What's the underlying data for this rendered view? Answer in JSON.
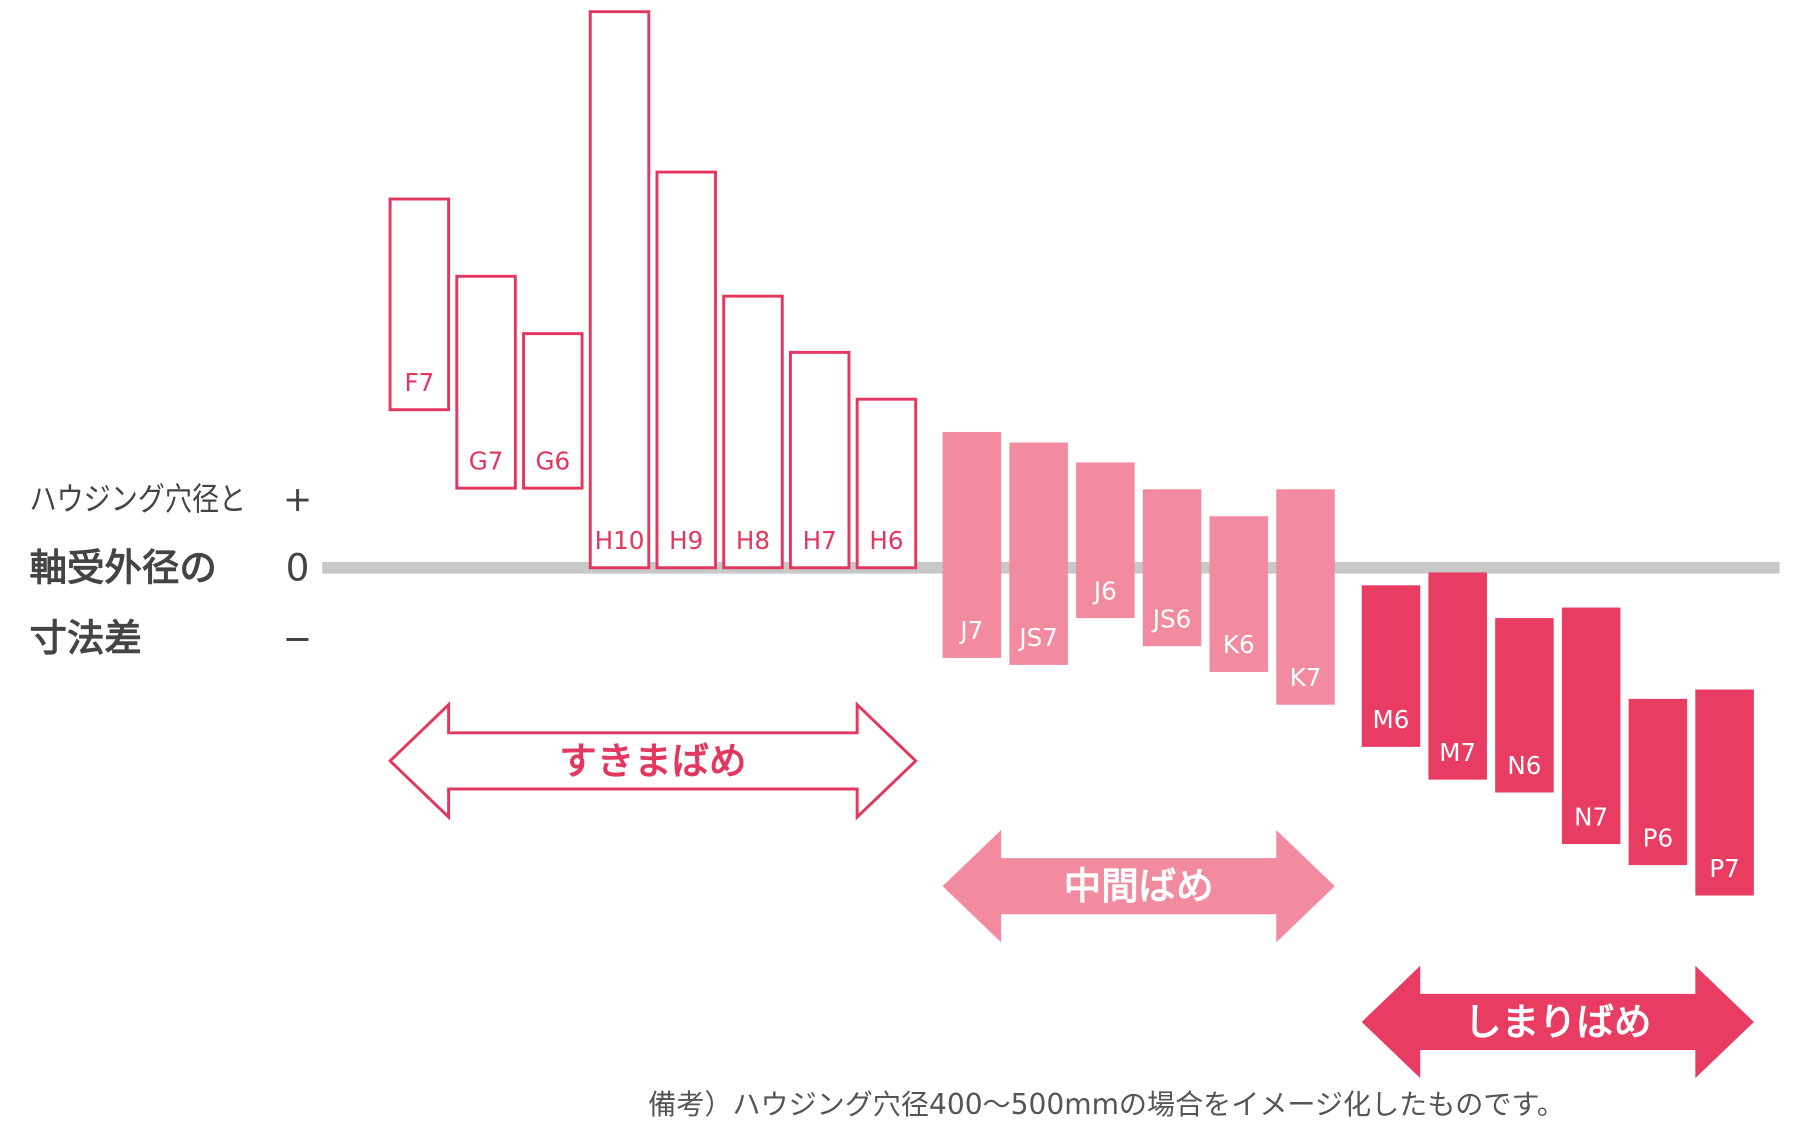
{
  "chart_data": {
    "type": "range-bar",
    "axis_caption": [
      "ハウジング穴径と",
      "軸受外径の",
      "寸法差"
    ],
    "axis_signs": [
      "+",
      "0",
      "−"
    ],
    "ylim": [
      -285,
      480
    ],
    "zero_line_color": "#c8c8c8",
    "groups": [
      {
        "name": "すきまばめ",
        "color": "#e2375f",
        "style": "outline",
        "categories": [
          "F7",
          "G7",
          "G6",
          "H10",
          "H9",
          "H8",
          "H7",
          "H6"
        ],
        "upper": [
          315,
          249,
          200,
          475,
          338,
          232,
          184,
          144
        ],
        "lower": [
          135,
          68,
          68,
          0,
          0,
          0,
          0,
          0
        ]
      },
      {
        "name": "中間ばめ",
        "color": "#f28aa0",
        "style": "filled",
        "categories": [
          "J7",
          "JS7",
          "J6",
          "JS6",
          "K6",
          "K7"
        ],
        "upper": [
          116,
          107,
          90,
          67,
          44,
          67
        ],
        "lower": [
          -77,
          -83,
          -43,
          -67,
          -89,
          -117
        ]
      },
      {
        "name": "しまりばめ",
        "color": "#e83c63",
        "style": "filled",
        "categories": [
          "M6",
          "M7",
          "N6",
          "N7",
          "P6",
          "P7"
        ],
        "upper": [
          -15,
          -4,
          -43,
          -34,
          -112,
          -104
        ],
        "lower": [
          -153,
          -181,
          -192,
          -236,
          -254,
          -280
        ]
      }
    ],
    "note": "備考）ハウジング穴径400〜500mmの場合をイメージ化したものです。"
  }
}
